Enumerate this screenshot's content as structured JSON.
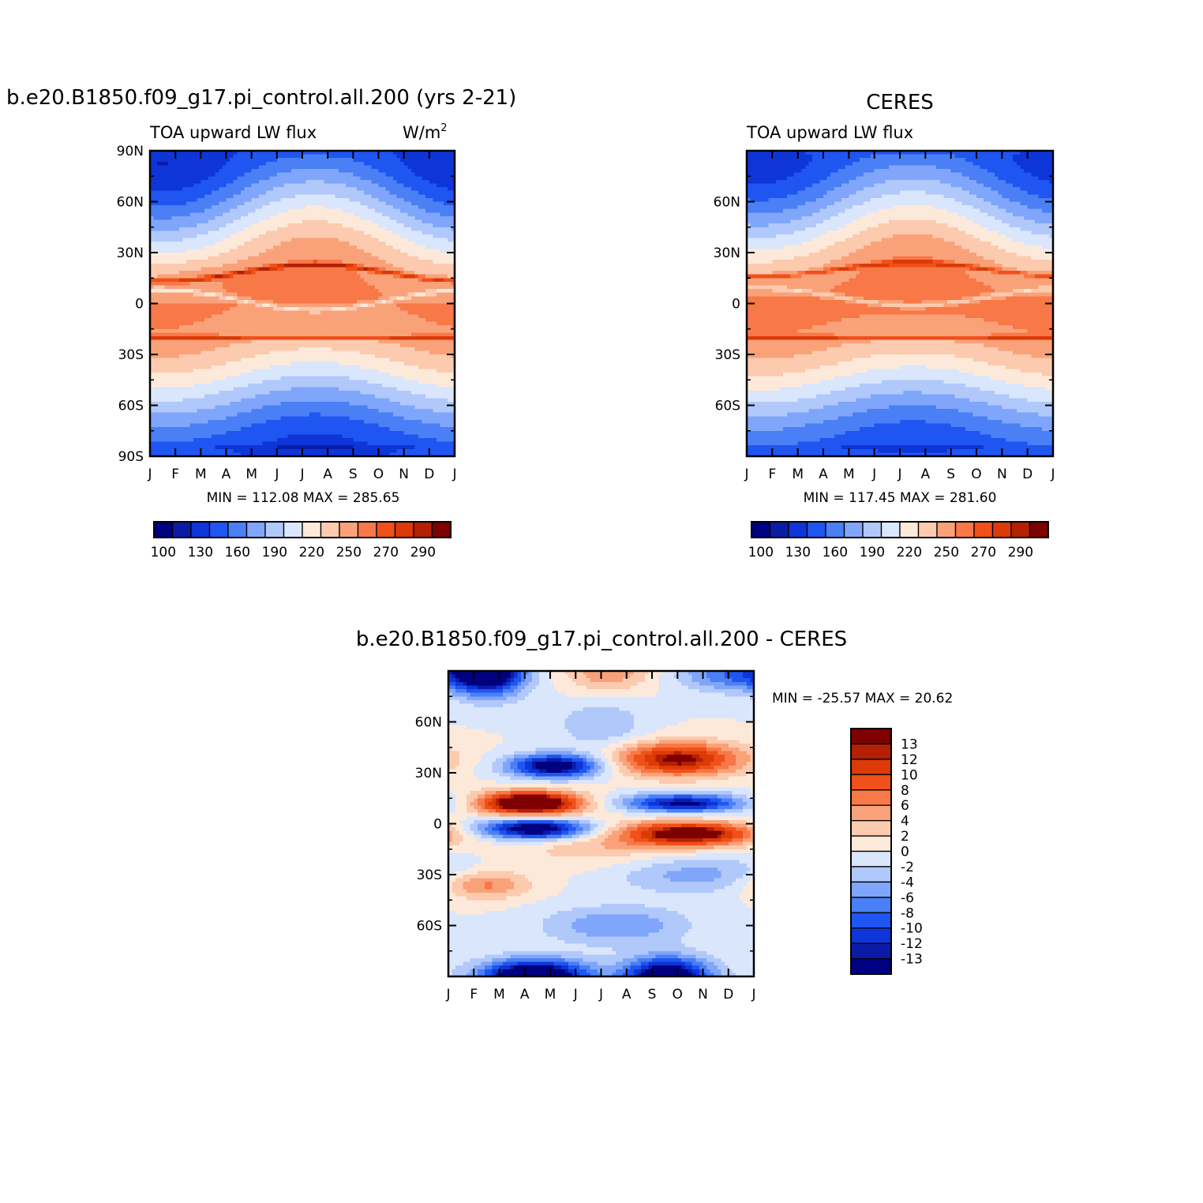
{
  "figure": {
    "palette_abs": [
      "#000080",
      "#0a1ca6",
      "#0d35d8",
      "#1f55f0",
      "#4a7ff5",
      "#7fa6fa",
      "#b1c8fb",
      "#d9e6fc",
      "#fde9da",
      "#fccaae",
      "#f9a27a",
      "#f87847",
      "#f05019",
      "#dc3a07",
      "#b32004",
      "#7f0000"
    ],
    "palette_diff": [
      "#000080",
      "#0a1ca6",
      "#0d35d8",
      "#1f55f0",
      "#4a7ff5",
      "#7fa6fa",
      "#b1c8fb",
      "#d9e6fc",
      "#fde9da",
      "#fccaae",
      "#f9a27a",
      "#f87847",
      "#f05019",
      "#dc3a07",
      "#b32004",
      "#7f0000"
    ]
  },
  "chart_data": [
    {
      "type": "heatmap",
      "id": "model",
      "title": "b.e20.B1850.f09_g17.pi_control.all.200 (yrs 2-21)",
      "left_subtitle": "TOA upward LW flux",
      "units_label": "W/m",
      "units_sup": "2",
      "xlabel": "",
      "ylabel": "",
      "x_ticks": [
        "J",
        "F",
        "M",
        "A",
        "M",
        "J",
        "J",
        "A",
        "S",
        "O",
        "N",
        "D",
        "J"
      ],
      "y_ticks": [
        "90N",
        "60N",
        "30N",
        "0",
        "30S",
        "60S",
        "90S"
      ],
      "y_tick_values": [
        90,
        60,
        30,
        0,
        -30,
        -60,
        -90
      ],
      "ylim": [
        -90,
        90
      ],
      "xlim": [
        0,
        12
      ],
      "stats": "MIN =  112.08  MAX =  285.65",
      "colorbar_labels": [
        "100",
        "130",
        "160",
        "190",
        "220",
        "250",
        "270",
        "290"
      ],
      "levels": [
        100,
        115,
        130,
        145,
        160,
        175,
        190,
        205,
        220,
        235,
        250,
        260,
        270,
        280,
        290
      ],
      "zmin": 112.08,
      "zmax": 285.65
    },
    {
      "type": "heatmap",
      "id": "obs",
      "title": "CERES",
      "left_subtitle": "TOA upward LW flux",
      "xlabel": "",
      "ylabel": "",
      "x_ticks": [
        "J",
        "F",
        "M",
        "A",
        "M",
        "J",
        "J",
        "A",
        "S",
        "O",
        "N",
        "D",
        "J"
      ],
      "y_ticks": [
        "60N",
        "30N",
        "0",
        "30S",
        "60S"
      ],
      "y_tick_values": [
        60,
        30,
        0,
        -30,
        -60
      ],
      "ylim": [
        -90,
        90
      ],
      "xlim": [
        0,
        12
      ],
      "stats": "MIN =  117.45  MAX =  281.60",
      "colorbar_labels": [
        "100",
        "130",
        "160",
        "190",
        "220",
        "250",
        "270",
        "290"
      ],
      "levels": [
        100,
        115,
        130,
        145,
        160,
        175,
        190,
        205,
        220,
        235,
        250,
        260,
        270,
        280,
        290
      ],
      "zmin": 117.45,
      "zmax": 281.6
    },
    {
      "type": "heatmap",
      "id": "diff",
      "title": "b.e20.B1850.f09_g17.pi_control.all.200  -  CERES",
      "xlabel": "",
      "ylabel": "",
      "x_ticks": [
        "J",
        "F",
        "M",
        "A",
        "M",
        "J",
        "J",
        "A",
        "S",
        "O",
        "N",
        "D",
        "J"
      ],
      "y_ticks": [
        "60N",
        "30N",
        "0",
        "30S",
        "60S"
      ],
      "y_tick_values": [
        60,
        30,
        0,
        -30,
        -60
      ],
      "ylim": [
        -90,
        90
      ],
      "xlim": [
        0,
        12
      ],
      "stats": "MIN =  -25.57  MAX =   20.62",
      "colorbar_labels": [
        "13",
        "12",
        "10",
        "8",
        "6",
        "4",
        "2",
        "0",
        "-2",
        "-4",
        "-6",
        "-8",
        "-10",
        "-12",
        "-13"
      ],
      "levels": [
        -13,
        -12,
        -10,
        -8,
        -6,
        -4,
        -2,
        0,
        2,
        4,
        6,
        8,
        10,
        12,
        13
      ],
      "zmin": -25.57,
      "zmax": 20.62
    }
  ]
}
